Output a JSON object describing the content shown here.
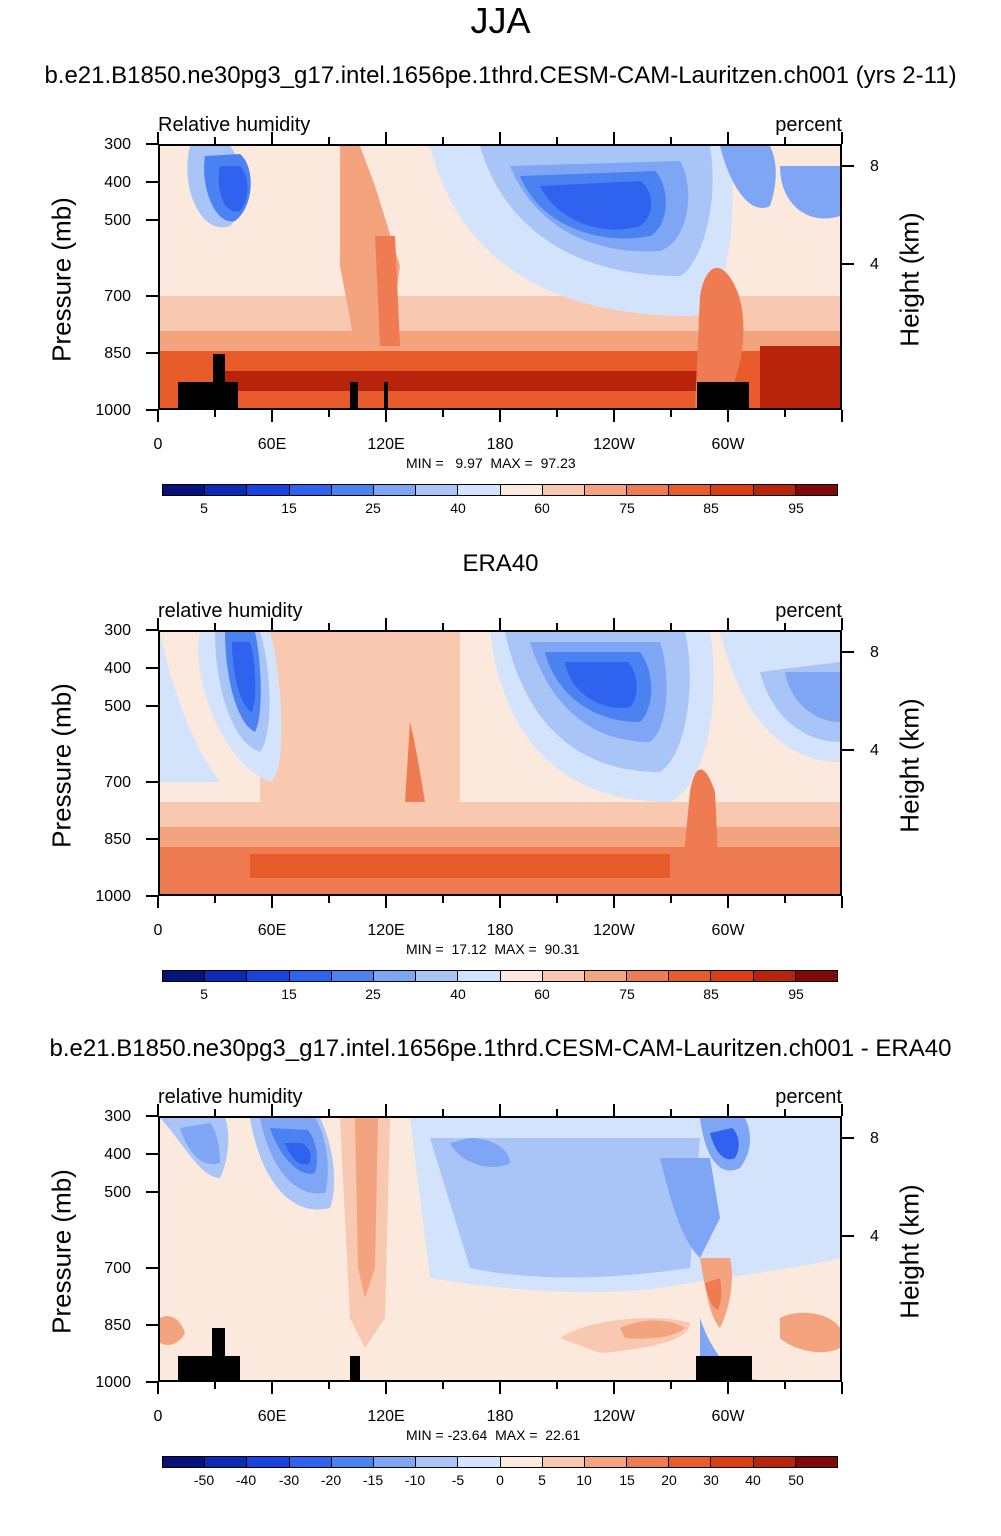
{
  "main_title": "JJA",
  "colors": {
    "scale": [
      "#06127c",
      "#0b2ab5",
      "#1744de",
      "#2f62ef",
      "#4a82f2",
      "#7ea6f4",
      "#a9c4f6",
      "#d3e3fb",
      "#fbe9dd",
      "#f9c8b0",
      "#f4a37f",
      "#ef7b52",
      "#e85b2b",
      "#db3e10",
      "#b8230b",
      "#820707"
    ]
  },
  "chart_data": [
    {
      "type": "heatmap",
      "title": "b.e21.B1850.ne30pg3_g17.intel.1656pe.1thrd.CESM-CAM-Lauritzen.ch001 (yrs 2-11)",
      "left_label": "Relative humidity",
      "right_label": "percent",
      "ylabel": "Pressure (mb)",
      "ylabel_right": "Height (km)",
      "yticks": [
        "300",
        "400",
        "500",
        "700",
        "850",
        "1000"
      ],
      "yticks_right": [
        "8",
        "4"
      ],
      "xticks": [
        "0",
        "60E",
        "120E",
        "180",
        "120W",
        "60W"
      ],
      "min_label": "MIN =   9.97  MAX =  97.23",
      "colorbar_labels": [
        "5",
        "15",
        "25",
        "40",
        "60",
        "75",
        "85",
        "95"
      ],
      "xlim": [
        0,
        360
      ],
      "ylim": [
        1000,
        300
      ],
      "min": 9.97,
      "max": 97.23
    },
    {
      "type": "heatmap",
      "title": "ERA40",
      "left_label": "relative humidity",
      "right_label": "percent",
      "ylabel": "Pressure (mb)",
      "ylabel_right": "Height (km)",
      "yticks": [
        "300",
        "400",
        "500",
        "700",
        "850",
        "1000"
      ],
      "yticks_right": [
        "8",
        "4"
      ],
      "xticks": [
        "0",
        "60E",
        "120E",
        "180",
        "120W",
        "60W"
      ],
      "min_label": "MIN =  17.12  MAX =  90.31",
      "colorbar_labels": [
        "5",
        "15",
        "25",
        "40",
        "60",
        "75",
        "85",
        "95"
      ],
      "xlim": [
        0,
        360
      ],
      "ylim": [
        1000,
        300
      ],
      "min": 17.12,
      "max": 90.31
    },
    {
      "type": "heatmap",
      "title": "b.e21.B1850.ne30pg3_g17.intel.1656pe.1thrd.CESM-CAM-Lauritzen.ch001 - ERA40",
      "left_label": "relative humidity",
      "right_label": "percent",
      "ylabel": "Pressure (mb)",
      "ylabel_right": "Height (km)",
      "yticks": [
        "300",
        "400",
        "500",
        "700",
        "850",
        "1000"
      ],
      "yticks_right": [
        "8",
        "4"
      ],
      "xticks": [
        "0",
        "60E",
        "120E",
        "180",
        "120W",
        "60W"
      ],
      "min_label": "MIN = -23.64  MAX =  22.61",
      "colorbar_labels": [
        "-50",
        "-40",
        "-30",
        "-20",
        "-15",
        "-10",
        "-5",
        "0",
        "5",
        "10",
        "15",
        "20",
        "30",
        "40",
        "50"
      ],
      "xlim": [
        0,
        360
      ],
      "ylim": [
        1000,
        300
      ],
      "min": -23.64,
      "max": 22.61
    }
  ]
}
